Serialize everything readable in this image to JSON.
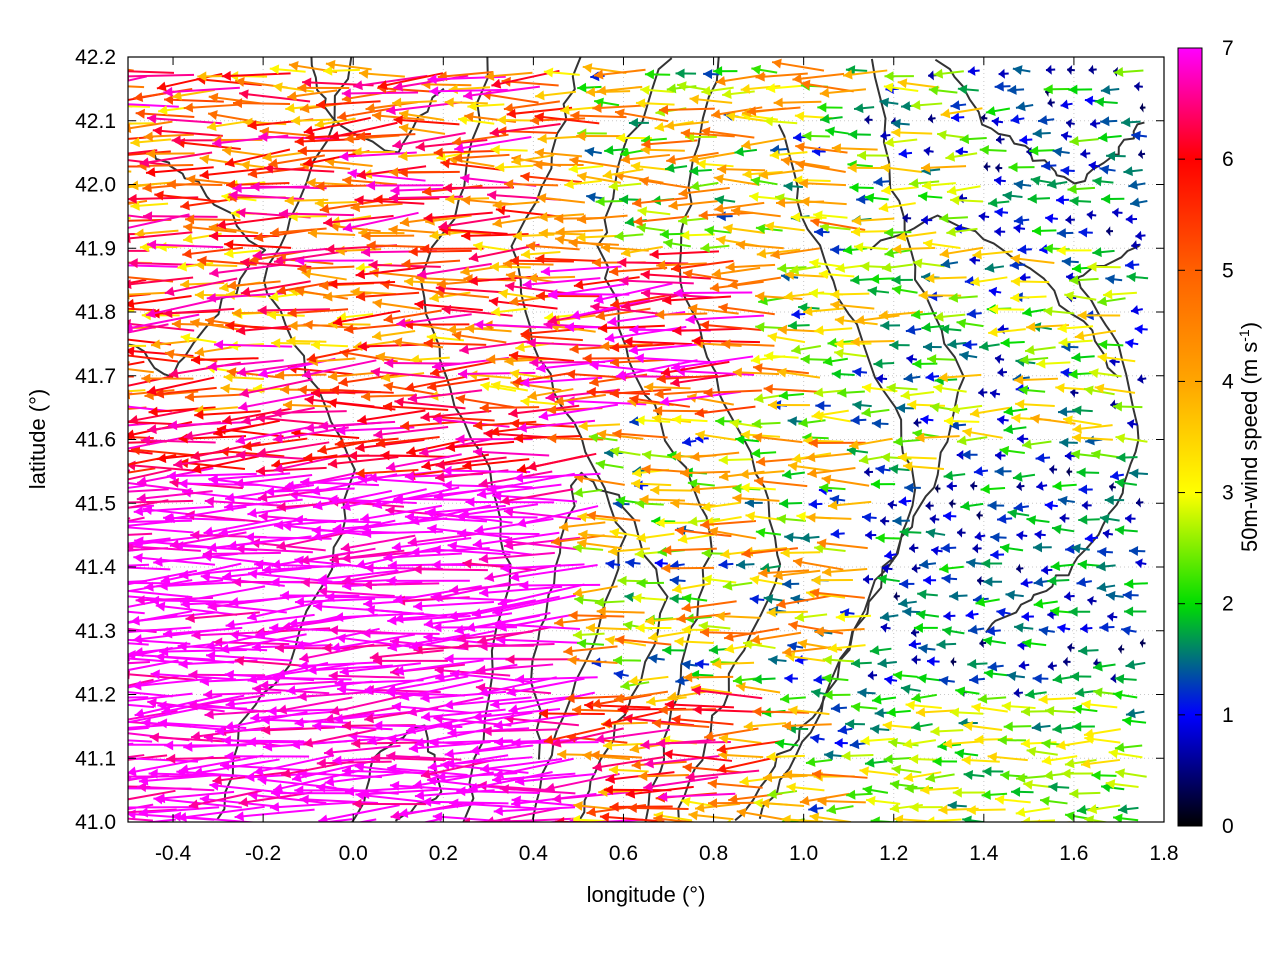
{
  "chart_data": {
    "type": "quiver",
    "xlabel": "longitude (°)",
    "ylabel": "latitude (°)",
    "xlim": [
      -0.5,
      1.8
    ],
    "ylim": [
      41.0,
      42.2
    ],
    "xticks": [
      -0.4,
      -0.2,
      0.0,
      0.2,
      0.4,
      0.6,
      0.8,
      1.0,
      1.2,
      1.4,
      1.6,
      1.8
    ],
    "xtick_labels": [
      "-0.4",
      "-0.2",
      "0.0",
      "0.2",
      "0.4",
      "0.6",
      "0.8",
      "1.0",
      "1.2",
      "1.4",
      "1.6",
      "1.8"
    ],
    "yticks": [
      41.0,
      41.1,
      41.2,
      41.3,
      41.4,
      41.5,
      41.6,
      41.7,
      41.8,
      41.9,
      42.0,
      42.1,
      42.2
    ],
    "ytick_labels": [
      "41.0",
      "41.1",
      "41.2",
      "41.3",
      "41.4",
      "41.5",
      "41.6",
      "41.7",
      "41.8",
      "41.9",
      "42.0",
      "42.1",
      "42.2"
    ],
    "grid": true,
    "colorbar": {
      "label_main": "50m-wind speed (m s",
      "label_sup": "-1",
      "label_end": ")",
      "range": [
        0,
        7
      ],
      "ticks": [
        "0",
        "1",
        "2",
        "3",
        "4",
        "5",
        "6",
        "7"
      ],
      "stops": [
        {
          "v": 0,
          "color": "#000000"
        },
        {
          "v": 1,
          "color": "#0000ff"
        },
        {
          "v": 2,
          "color": "#00dd00"
        },
        {
          "v": 3,
          "color": "#ffff00"
        },
        {
          "v": 4,
          "color": "#ffa500"
        },
        {
          "v": 5,
          "color": "#ff6000"
        },
        {
          "v": 6,
          "color": "#ff0000"
        },
        {
          "v": 7,
          "color": "#ff00ff"
        }
      ]
    },
    "wind_field": {
      "lon_start": -0.5,
      "lon_end": 1.75,
      "lon_step": 0.05,
      "lat_start": 41.0,
      "lat_end": 42.18,
      "lat_step": 0.025,
      "direction": "westward (from east)",
      "speed_regions": [
        {
          "name": "strong-southwest",
          "lon_max": 0.55,
          "lat_max": 41.65,
          "speed": 7
        },
        {
          "name": "central-band",
          "lon_max": 0.95,
          "lat_min": 41.65,
          "lat_max": 41.9,
          "speed": 6
        },
        {
          "name": "east-calm",
          "lon_min": 1.15,
          "lat_min": 41.2,
          "lat_max": 41.55,
          "speed": 1
        },
        {
          "name": "southeast-moderate",
          "lon_min": 1.15,
          "lat_max": 41.2,
          "speed": 2.2
        }
      ]
    },
    "contour_color": "#333333",
    "contour_description": "orography contours"
  }
}
